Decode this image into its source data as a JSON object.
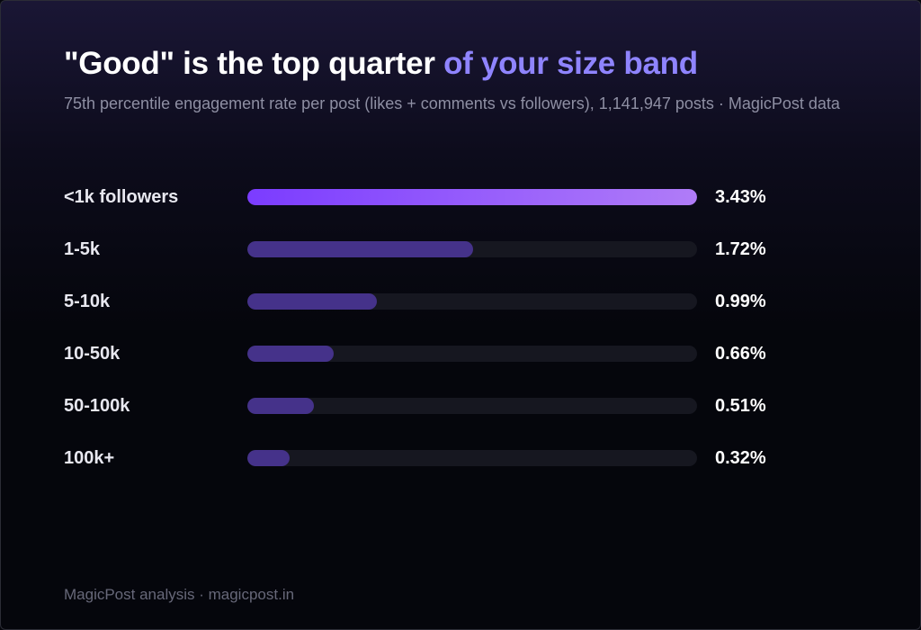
{
  "chart_data": {
    "type": "bar",
    "orientation": "horizontal",
    "title": {
      "main": "\"Good\" is the top quarter",
      "accent": "of your size band"
    },
    "subtitle": "75th percentile engagement rate per post (likes + comments vs followers), 1,141,947 posts · MagicPost data",
    "categories": [
      "<1k followers",
      "1-5k",
      "5-10k",
      "10-50k",
      "50-100k",
      "100k+"
    ],
    "values": [
      3.43,
      1.72,
      0.99,
      0.66,
      0.51,
      0.32
    ],
    "value_labels": [
      "3.43%",
      "1.72%",
      "0.99%",
      "0.66%",
      "0.51%",
      "0.32%"
    ],
    "xlim": [
      0,
      3.43
    ],
    "unit": "%",
    "grid": false,
    "legend": "none",
    "colors": {
      "highlight_start": "#7b3cff",
      "highlight_end": "#b07cf8",
      "bar": "#45328a",
      "track": "#161720",
      "accent_text": "#8f84ff"
    }
  },
  "footer": "MagicPost analysis · magicpost.in"
}
